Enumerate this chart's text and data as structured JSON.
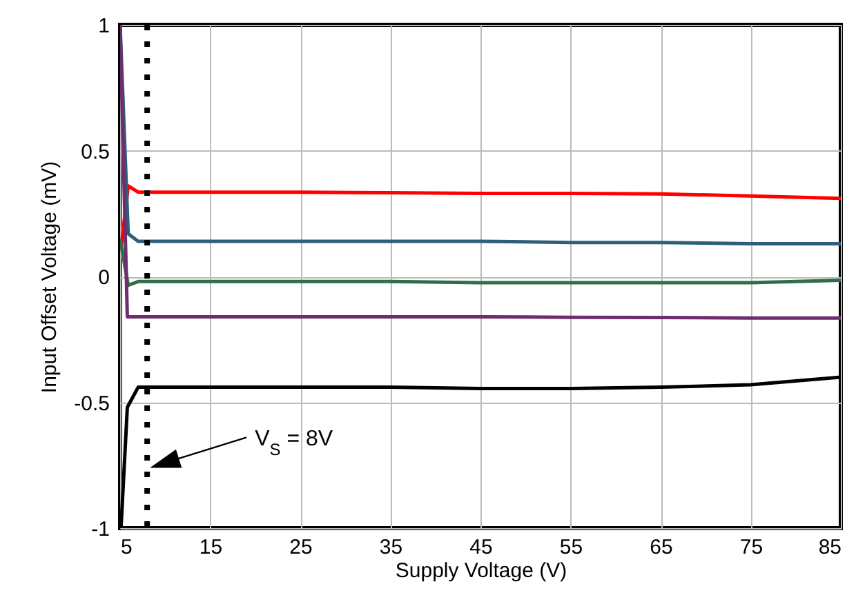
{
  "chart_data": {
    "type": "line",
    "xlabel": "Supply Voltage (V)",
    "ylabel": "Input Offset Voltage (mV)",
    "xlim": [
      5,
      85
    ],
    "xticks": [
      5,
      15,
      25,
      35,
      45,
      55,
      65,
      75,
      85
    ],
    "ylim": [
      -1,
      1
    ],
    "yticks": [
      -1,
      -0.5,
      0,
      0.5,
      1
    ],
    "grid": true,
    "series": [
      {
        "color": "#ff0000",
        "x": [
          5.1,
          5.9,
          7,
          15,
          25,
          35,
          45,
          55,
          65,
          75,
          85
        ],
        "values": [
          0.11,
          0.36,
          0.335,
          0.335,
          0.335,
          0.333,
          0.33,
          0.33,
          0.328,
          0.32,
          0.31
        ]
      },
      {
        "color": "#2e5f7a",
        "x": [
          5,
          5.9,
          7,
          15,
          25,
          35,
          45,
          55,
          65,
          75,
          85
        ],
        "values": [
          1,
          0.17,
          0.14,
          0.14,
          0.14,
          0.14,
          0.14,
          0.135,
          0.135,
          0.13,
          0.13
        ]
      },
      {
        "color": "#2e6e4a",
        "x": [
          5,
          5.9,
          7,
          15,
          25,
          35,
          45,
          55,
          65,
          75,
          85
        ],
        "values": [
          0.15,
          -0.035,
          -0.02,
          -0.02,
          -0.02,
          -0.02,
          -0.025,
          -0.025,
          -0.025,
          -0.025,
          -0.015
        ]
      },
      {
        "color": "#6e2e6e",
        "x": [
          5,
          5.8,
          7,
          15,
          25,
          35,
          45,
          55,
          65,
          75,
          85
        ],
        "values": [
          1,
          -0.16,
          -0.16,
          -0.16,
          -0.16,
          -0.16,
          -0.16,
          -0.162,
          -0.163,
          -0.165,
          -0.165
        ]
      },
      {
        "color": "#000000",
        "x": [
          5.1,
          5.8,
          7,
          15,
          25,
          35,
          45,
          55,
          65,
          75,
          85
        ],
        "values": [
          -1,
          -0.52,
          -0.44,
          -0.44,
          -0.44,
          -0.44,
          -0.445,
          -0.445,
          -0.44,
          -0.43,
          -0.4
        ]
      }
    ],
    "ref_lines": [
      {
        "axis": "x",
        "value": 8,
        "color": "#000000",
        "line_style": "dotted"
      }
    ],
    "annotations": [
      "V$_{S}$ = 8V"
    ]
  }
}
